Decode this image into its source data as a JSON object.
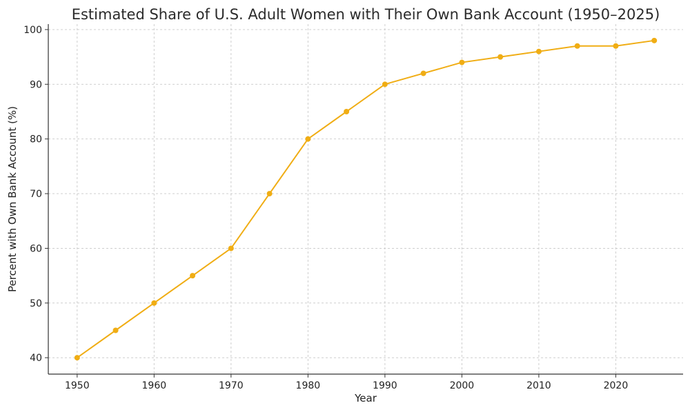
{
  "chart_data": {
    "type": "line",
    "title": "Estimated Share of U.S. Adult Women with Their Own Bank Account (1950–2025)",
    "xlabel": "Year",
    "ylabel": "Percent with Own Bank Account (%)",
    "xlim": [
      1946.25,
      2028.75
    ],
    "ylim": [
      37,
      101
    ],
    "x_ticks": [
      1950,
      1960,
      1970,
      1980,
      1990,
      2000,
      2010,
      2020
    ],
    "y_ticks": [
      40,
      50,
      60,
      70,
      80,
      90,
      100
    ],
    "grid": true,
    "grid_style": "dashed",
    "series": [
      {
        "color": "#f0ad14",
        "marker": "circle",
        "x": [
          1950,
          1955,
          1960,
          1965,
          1970,
          1975,
          1980,
          1985,
          1990,
          1995,
          2000,
          2005,
          2010,
          2015,
          2020,
          2025
        ],
        "values": [
          40,
          45,
          50,
          55,
          60,
          70,
          80,
          85,
          90,
          92,
          94,
          95,
          96,
          97,
          97,
          98
        ]
      }
    ]
  }
}
